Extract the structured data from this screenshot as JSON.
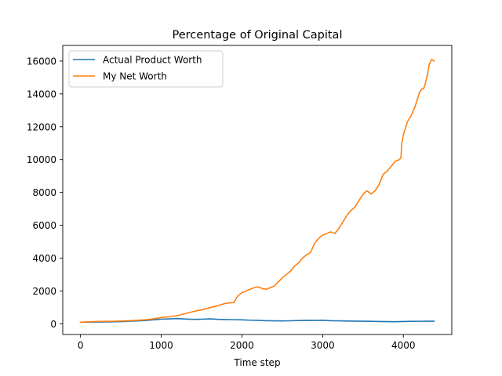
{
  "chart_data": {
    "type": "line",
    "title": "Percentage of Original Capital",
    "xlabel": "Time step",
    "ylabel": "",
    "xlim": [
      -220,
      4600
    ],
    "ylim": [
      -650,
      16950
    ],
    "xticks": [
      0,
      1000,
      2000,
      3000,
      4000
    ],
    "yticks": [
      0,
      2000,
      4000,
      6000,
      8000,
      10000,
      12000,
      14000,
      16000
    ],
    "grid": false,
    "legend_position": "top-left",
    "series": [
      {
        "name": "Actual Product Worth",
        "color": "#1f77b4",
        "x": [
          0,
          100,
          200,
          300,
          400,
          500,
          600,
          700,
          800,
          900,
          1000,
          1100,
          1200,
          1300,
          1400,
          1500,
          1600,
          1650,
          1700,
          1800,
          1900,
          2000,
          2100,
          2200,
          2300,
          2400,
          2500,
          2600,
          2700,
          2800,
          2900,
          3000,
          3100,
          3200,
          3300,
          3400,
          3500,
          3600,
          3700,
          3800,
          3900,
          4000,
          4100,
          4200,
          4300,
          4380
        ],
        "y": [
          100,
          105,
          110,
          115,
          120,
          135,
          155,
          175,
          200,
          240,
          280,
          300,
          320,
          290,
          270,
          280,
          300,
          290,
          270,
          260,
          250,
          240,
          220,
          210,
          190,
          180,
          175,
          185,
          200,
          210,
          205,
          215,
          190,
          180,
          170,
          165,
          160,
          150,
          140,
          135,
          130,
          140,
          150,
          155,
          160,
          160
        ]
      },
      {
        "name": "My Net Worth",
        "color": "#ff7f0e",
        "x": [
          0,
          100,
          200,
          300,
          400,
          500,
          600,
          700,
          800,
          900,
          1000,
          1100,
          1200,
          1300,
          1400,
          1500,
          1600,
          1700,
          1800,
          1900,
          1950,
          2000,
          2050,
          2100,
          2150,
          2200,
          2250,
          2300,
          2350,
          2400,
          2450,
          2500,
          2600,
          2650,
          2700,
          2750,
          2800,
          2850,
          2900,
          2950,
          3000,
          3050,
          3100,
          3150,
          3200,
          3250,
          3300,
          3350,
          3400,
          3450,
          3500,
          3550,
          3600,
          3650,
          3700,
          3750,
          3800,
          3850,
          3900,
          3950,
          3970,
          3980,
          4000,
          4050,
          4100,
          4150,
          4200,
          4230,
          4250,
          4270,
          4300,
          4320,
          4350,
          4380
        ],
        "y": [
          100,
          120,
          140,
          150,
          155,
          170,
          190,
          210,
          240,
          300,
          380,
          430,
          500,
          620,
          750,
          850,
          980,
          1100,
          1250,
          1300,
          1700,
          1900,
          2000,
          2100,
          2200,
          2250,
          2150,
          2100,
          2200,
          2300,
          2550,
          2800,
          3200,
          3500,
          3700,
          4000,
          4200,
          4350,
          4900,
          5200,
          5400,
          5500,
          5600,
          5500,
          5800,
          6200,
          6600,
          6900,
          7100,
          7500,
          7900,
          8100,
          7900,
          8100,
          8500,
          9100,
          9300,
          9600,
          9900,
          10000,
          10100,
          11000,
          11500,
          12300,
          12700,
          13300,
          14100,
          14300,
          14300,
          14600,
          15200,
          15800,
          16100,
          16000
        ]
      }
    ]
  }
}
